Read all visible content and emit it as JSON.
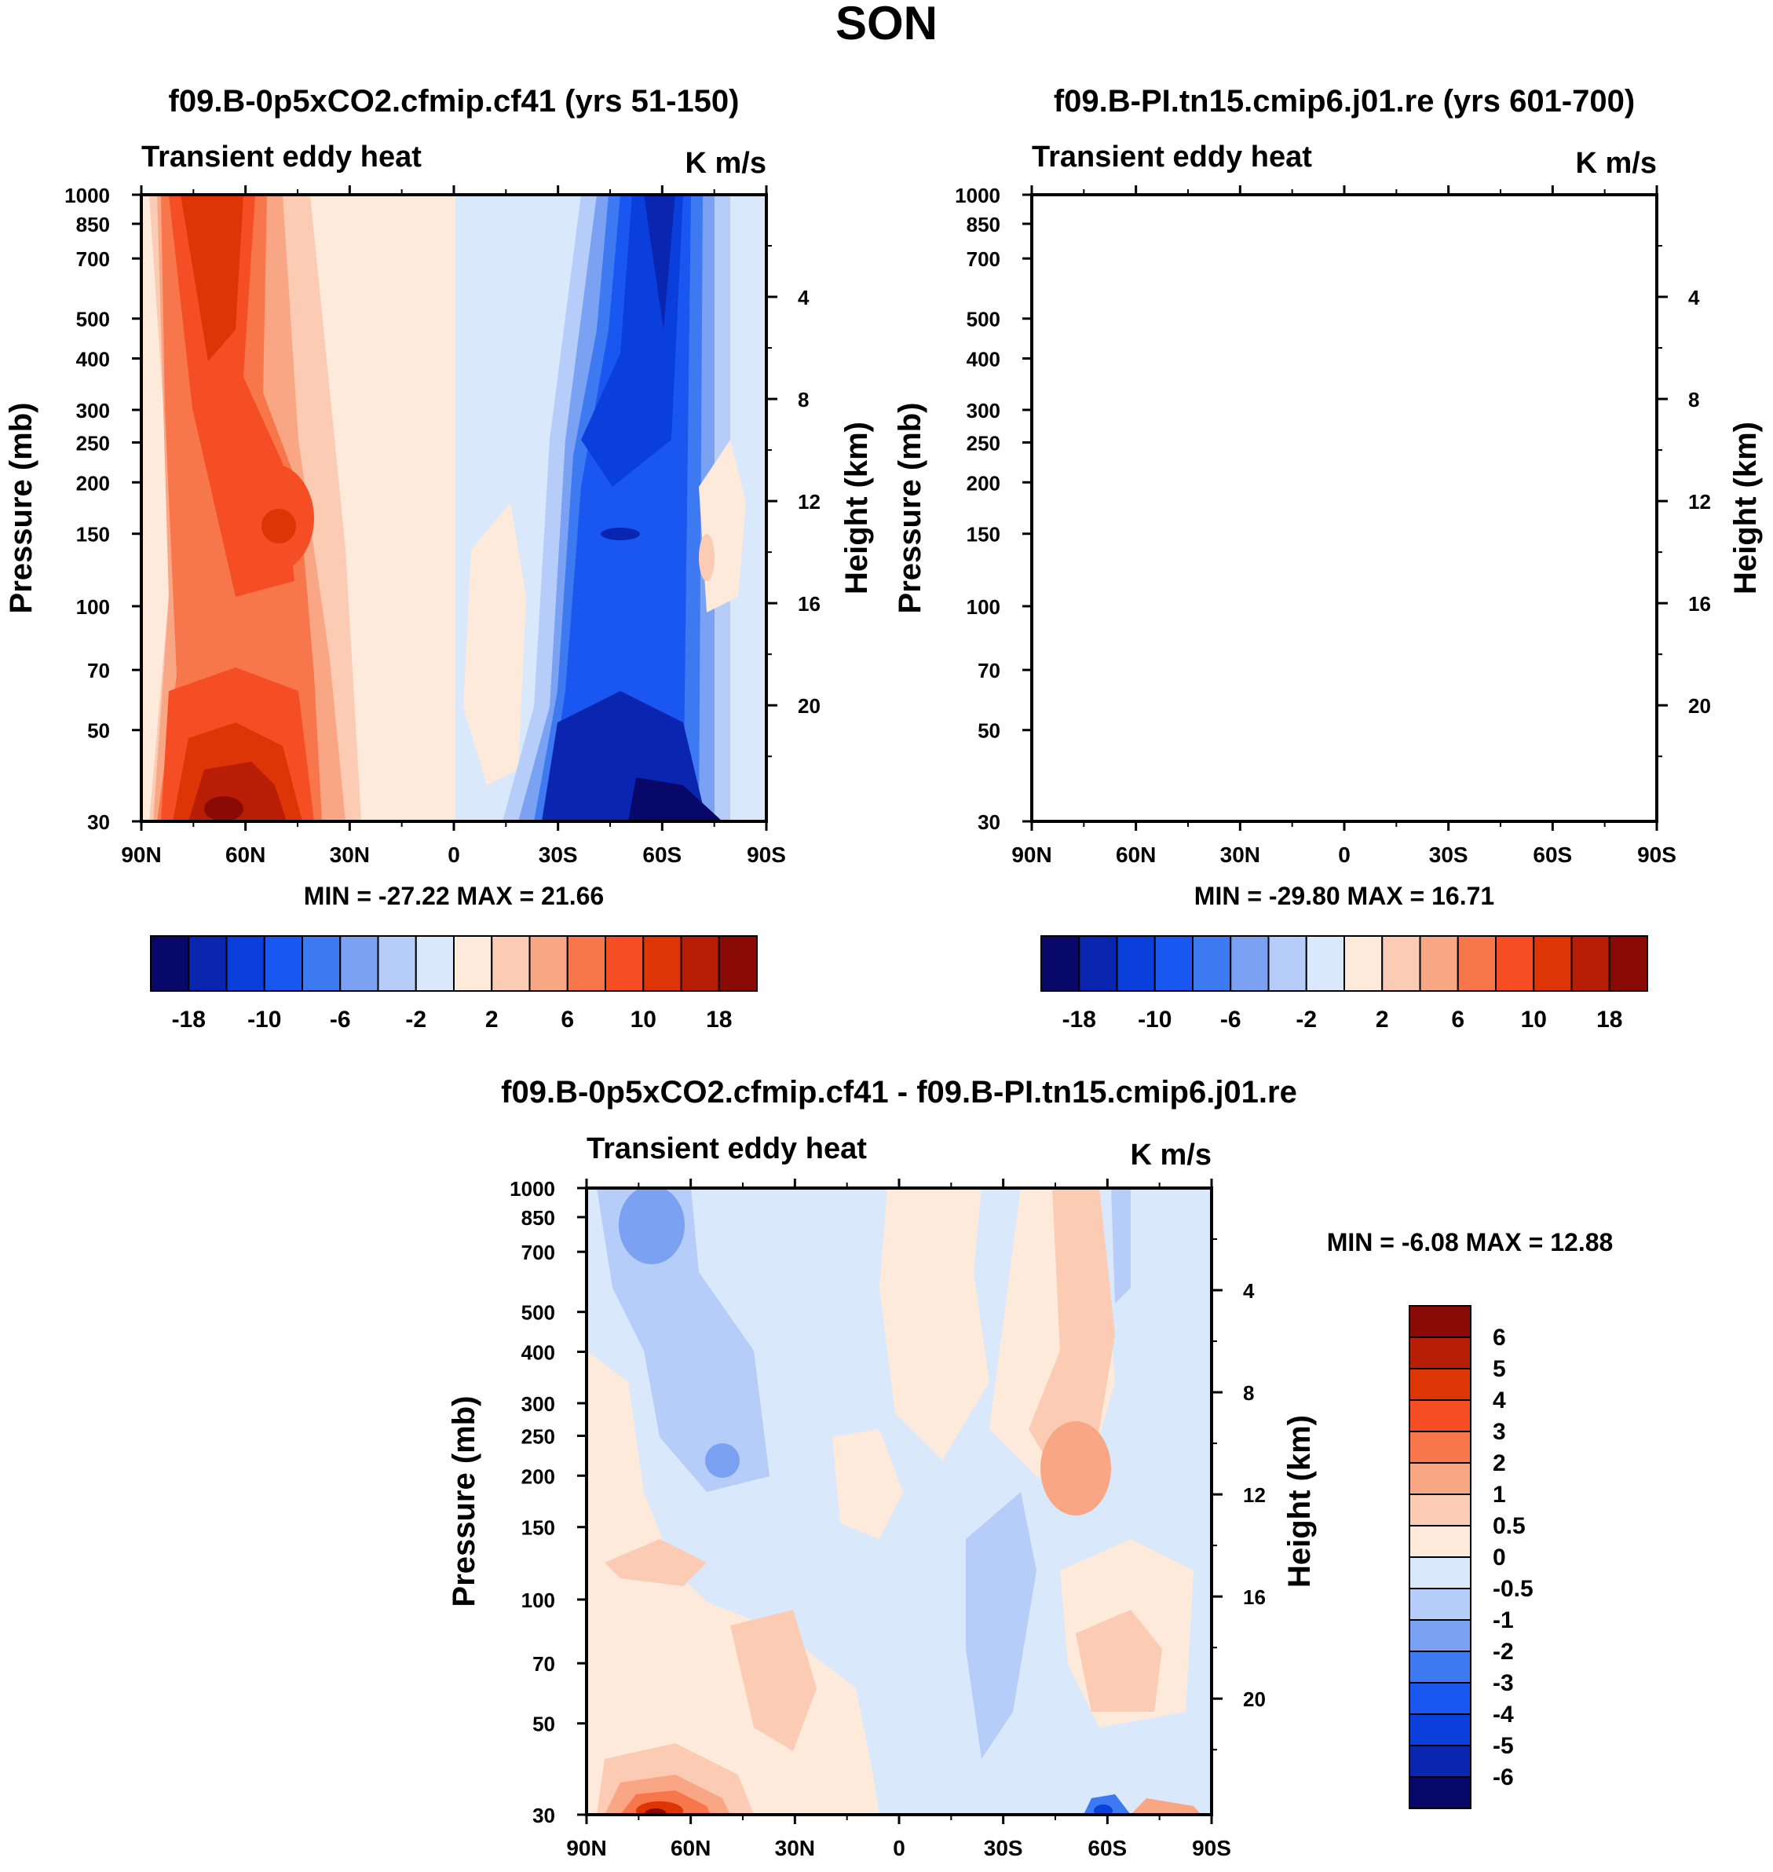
{
  "figure": {
    "title": "SON"
  },
  "colors": {
    "scale": [
      "#08086b",
      "#0a25b0",
      "#0b3fdc",
      "#1a57f0",
      "#3d79f0",
      "#7aa1f2",
      "#b5cdf8",
      "#dae8fb",
      "#feeadb",
      "#fbcbb3",
      "#f9a684",
      "#f8764b",
      "#f54e24",
      "#de3506",
      "#b81e05",
      "#8a0b05"
    ]
  },
  "chart_data": [
    {
      "id": "panel-cf41",
      "type": "contour",
      "title": "f09.B-0p5xCO2.cfmip.cf41 (yrs 51-150)",
      "left_label": "Transient eddy heat",
      "right_label": "K m/s",
      "ylabel": "Pressure (mb)",
      "ylabel_right": "Height (km)",
      "x_ticks": [
        "90N",
        "60N",
        "30N",
        "0",
        "30S",
        "60S",
        "90S"
      ],
      "y_ticks": [
        "30",
        "50",
        "70",
        "100",
        "150",
        "200",
        "250",
        "300",
        "400",
        "500",
        "700",
        "850",
        "1000"
      ],
      "y_right_ticks": [
        "20",
        "16",
        "12",
        "8",
        "4"
      ],
      "ylim": [
        1000,
        30
      ],
      "stats": "MIN = -27.22  MAX =  21.66",
      "colorbar": {
        "orientation": "horizontal",
        "labels": [
          "-18",
          "-10",
          "-6",
          "-2",
          "2",
          "6",
          "10",
          "18"
        ]
      }
    },
    {
      "id": "panel-pi",
      "type": "contour",
      "title": "f09.B-PI.tn15.cmip6.j01.re (yrs 601-700)",
      "left_label": "Transient eddy heat",
      "right_label": "K m/s",
      "ylabel": "Pressure (mb)",
      "ylabel_right": "Height (km)",
      "x_ticks": [
        "90N",
        "60N",
        "30N",
        "0",
        "30S",
        "60S",
        "90S"
      ],
      "y_ticks": [
        "30",
        "50",
        "70",
        "100",
        "150",
        "200",
        "250",
        "300",
        "400",
        "500",
        "700",
        "850",
        "1000"
      ],
      "y_right_ticks": [
        "20",
        "16",
        "12",
        "8",
        "4"
      ],
      "ylim": [
        1000,
        30
      ],
      "stats": "MIN = -29.80  MAX =  16.71",
      "colorbar": {
        "orientation": "horizontal",
        "labels": [
          "-18",
          "-10",
          "-6",
          "-2",
          "2",
          "6",
          "10",
          "18"
        ]
      }
    },
    {
      "id": "panel-diff",
      "type": "contour",
      "title": "f09.B-0p5xCO2.cfmip.cf41 - f09.B-PI.tn15.cmip6.j01.re",
      "left_label": "Transient eddy heat",
      "right_label": "K m/s",
      "ylabel": "Pressure (mb)",
      "ylabel_right": "Height (km)",
      "x_ticks": [
        "90N",
        "60N",
        "30N",
        "0",
        "30S",
        "60S",
        "90S"
      ],
      "y_ticks": [
        "30",
        "50",
        "70",
        "100",
        "150",
        "200",
        "250",
        "300",
        "400",
        "500",
        "700",
        "850",
        "1000"
      ],
      "y_right_ticks": [
        "20",
        "16",
        "12",
        "8",
        "4"
      ],
      "ylim": [
        1000,
        30
      ],
      "stats": "MIN =  -6.08  MAX =  12.88",
      "colorbar": {
        "orientation": "vertical",
        "labels": [
          "6",
          "5",
          "4",
          "3",
          "2",
          "1",
          "0.5",
          "0",
          "-0.5",
          "-1",
          "-2",
          "-3",
          "-4",
          "-5",
          "-6"
        ]
      }
    }
  ]
}
